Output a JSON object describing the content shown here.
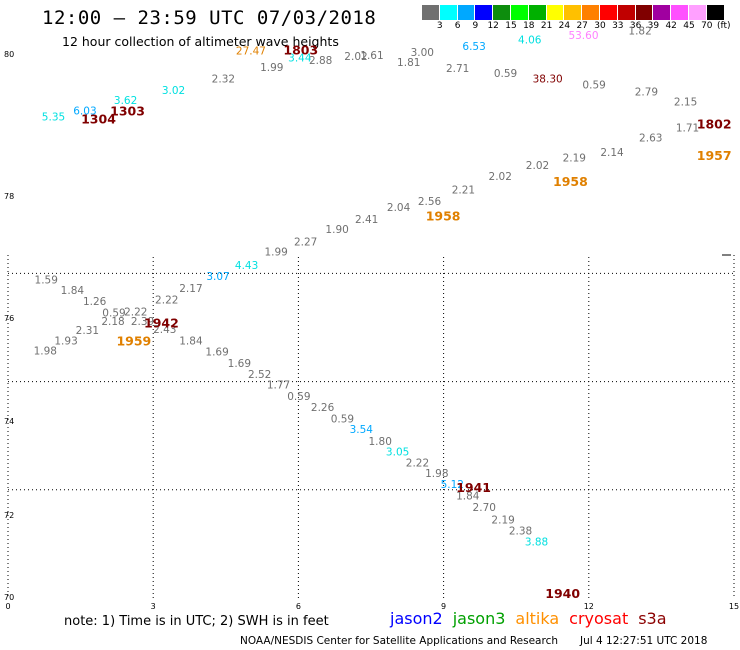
{
  "header": {
    "title": "12:00 – 23:59 UTC 07/03/2018",
    "subtitle": "12 hour collection of altimeter wave heights"
  },
  "scale": {
    "colors": [
      "#707070",
      "#00ffff",
      "#00a8ff",
      "#0000ff",
      "#0d8d0d",
      "#00ff00",
      "#00b000",
      "#ffff00",
      "#ffc000",
      "#ff8000",
      "#ff0000",
      "#c00000",
      "#800000",
      "#a000a0",
      "#ff50ff",
      "#ffa0ff",
      "#000000"
    ],
    "labels": [
      "3",
      "6",
      "9",
      "12",
      "15",
      "18",
      "21",
      "24",
      "27",
      "30",
      "33",
      "36",
      "39",
      "42",
      "45",
      "70"
    ],
    "unit": "(ft)"
  },
  "axes": {
    "x_ticks": [
      "0",
      "3",
      "6",
      "9",
      "12",
      "15"
    ],
    "y_ticks": [
      "80",
      "78",
      "76",
      "74",
      "72",
      "70"
    ]
  },
  "map_data": {
    "x_range": [
      0,
      15
    ],
    "y_range": [
      70,
      80
    ],
    "grid_x": [
      3,
      6,
      9,
      12
    ],
    "grid_y": [
      72,
      74,
      76,
      78
    ],
    "wave_labels": [
      {
        "x": 0.94,
        "y": 78.83,
        "text": "5.35",
        "color": "#00e0e0"
      },
      {
        "x": 1.59,
        "y": 78.94,
        "text": "6.03",
        "color": "#00a8ff"
      },
      {
        "x": 2.43,
        "y": 79.13,
        "text": "3.62",
        "color": "#00e0e0"
      },
      {
        "x": 3.42,
        "y": 79.32,
        "text": "3.02",
        "color": "#00e0e0"
      },
      {
        "x": 4.45,
        "y": 79.53,
        "text": "2.32",
        "color": "#707070"
      },
      {
        "x": 5.45,
        "y": 79.74,
        "text": "1.99",
        "color": "#707070"
      },
      {
        "x": 6.46,
        "y": 79.87,
        "text": "2.88",
        "color": "#707070"
      },
      {
        "x": 7.19,
        "y": 79.94,
        "text": "2.02",
        "color": "#707070"
      },
      {
        "x": 7.52,
        "y": 79.96,
        "text": "1.61",
        "color": "#707070"
      },
      {
        "x": 8.28,
        "y": 79.83,
        "text": "1.81",
        "color": "#707070"
      },
      {
        "x": 8.56,
        "y": 80.02,
        "text": "3.00",
        "color": "#707070"
      },
      {
        "x": 9.63,
        "y": 80.13,
        "text": "6.53",
        "color": "#00a8ff"
      },
      {
        "x": 9.29,
        "y": 79.72,
        "text": "2.71",
        "color": "#707070"
      },
      {
        "x": 10.28,
        "y": 79.63,
        "text": "0.59",
        "color": "#707070"
      },
      {
        "x": 10.78,
        "y": 80.25,
        "text": "4.06",
        "color": "#00e0e0"
      },
      {
        "x": 11.15,
        "y": 79.53,
        "text": "38.30",
        "color": "#800000"
      },
      {
        "x": 11.89,
        "y": 80.33,
        "text": "53.60",
        "color": "#ff80ff"
      },
      {
        "x": 12.11,
        "y": 79.42,
        "text": "0.59",
        "color": "#707070"
      },
      {
        "x": 13.06,
        "y": 80.42,
        "text": "1.82",
        "color": "#707070"
      },
      {
        "x": 13.19,
        "y": 79.29,
        "text": "2.79",
        "color": "#707070"
      },
      {
        "x": 14.0,
        "y": 79.1,
        "text": "2.15",
        "color": "#707070"
      },
      {
        "x": 14.04,
        "y": 78.62,
        "text": "1.71",
        "color": "#707070"
      },
      {
        "x": 13.28,
        "y": 78.44,
        "text": "2.63",
        "color": "#707070"
      },
      {
        "x": 12.48,
        "y": 78.17,
        "text": "2.14",
        "color": "#707070"
      },
      {
        "x": 11.7,
        "y": 78.07,
        "text": "2.19",
        "color": "#707070"
      },
      {
        "x": 10.94,
        "y": 77.93,
        "text": "2.02",
        "color": "#707070"
      },
      {
        "x": 10.17,
        "y": 77.73,
        "text": "2.02",
        "color": "#707070"
      },
      {
        "x": 9.41,
        "y": 77.48,
        "text": "2.21",
        "color": "#707070"
      },
      {
        "x": 8.71,
        "y": 77.26,
        "text": "2.56",
        "color": "#707070"
      },
      {
        "x": 8.07,
        "y": 77.15,
        "text": "2.04",
        "color": "#707070"
      },
      {
        "x": 7.41,
        "y": 76.93,
        "text": "2.41",
        "color": "#707070"
      },
      {
        "x": 6.8,
        "y": 76.75,
        "text": "1.90",
        "color": "#707070"
      },
      {
        "x": 6.15,
        "y": 76.52,
        "text": "2.27",
        "color": "#707070"
      },
      {
        "x": 5.54,
        "y": 76.33,
        "text": "1.99",
        "color": "#707070"
      },
      {
        "x": 4.93,
        "y": 76.08,
        "text": "4.43",
        "color": "#00e0e0"
      },
      {
        "x": 4.34,
        "y": 75.88,
        "text": "3.07",
        "color": "#00a8ff"
      },
      {
        "x": 3.78,
        "y": 75.66,
        "text": "2.17",
        "color": "#707070"
      },
      {
        "x": 3.28,
        "y": 75.44,
        "text": "2.22",
        "color": "#707070"
      },
      {
        "x": 0.79,
        "y": 75.81,
        "text": "1.59",
        "color": "#707070"
      },
      {
        "x": 1.33,
        "y": 75.62,
        "text": "1.84",
        "color": "#707070"
      },
      {
        "x": 1.79,
        "y": 75.42,
        "text": "1.26",
        "color": "#707070"
      },
      {
        "x": 2.19,
        "y": 75.2,
        "text": "0.59",
        "color": "#707070"
      },
      {
        "x": 2.64,
        "y": 75.22,
        "text": "2.22",
        "color": "#707070"
      },
      {
        "x": 2.17,
        "y": 75.05,
        "text": "2.18",
        "color": "#707070"
      },
      {
        "x": 2.78,
        "y": 75.05,
        "text": "2.39",
        "color": "#707070"
      },
      {
        "x": 1.64,
        "y": 74.88,
        "text": "2.31",
        "color": "#707070"
      },
      {
        "x": 3.24,
        "y": 74.9,
        "text": "2.43",
        "color": "#707070"
      },
      {
        "x": 1.2,
        "y": 74.69,
        "text": "1.93",
        "color": "#707070"
      },
      {
        "x": 0.77,
        "y": 74.5,
        "text": "1.98",
        "color": "#707070"
      },
      {
        "x": 3.78,
        "y": 74.69,
        "text": "1.84",
        "color": "#707070"
      },
      {
        "x": 4.32,
        "y": 74.48,
        "text": "1.69",
        "color": "#707070"
      },
      {
        "x": 4.78,
        "y": 74.27,
        "text": "1.69",
        "color": "#707070"
      },
      {
        "x": 5.2,
        "y": 74.07,
        "text": "2.52",
        "color": "#707070"
      },
      {
        "x": 5.59,
        "y": 73.87,
        "text": "1.77",
        "color": "#707070"
      },
      {
        "x": 6.01,
        "y": 73.66,
        "text": "0.59",
        "color": "#707070"
      },
      {
        "x": 6.5,
        "y": 73.46,
        "text": "2.26",
        "color": "#707070"
      },
      {
        "x": 6.91,
        "y": 73.24,
        "text": "0.59",
        "color": "#707070"
      },
      {
        "x": 7.3,
        "y": 73.05,
        "text": "3.54",
        "color": "#00a8ff"
      },
      {
        "x": 7.69,
        "y": 72.83,
        "text": "1.80",
        "color": "#707070"
      },
      {
        "x": 8.05,
        "y": 72.63,
        "text": "3.05",
        "color": "#00e0e0"
      },
      {
        "x": 8.46,
        "y": 72.43,
        "text": "2.22",
        "color": "#707070"
      },
      {
        "x": 8.86,
        "y": 72.24,
        "text": "1.98",
        "color": "#707070"
      },
      {
        "x": 9.18,
        "y": 72.03,
        "text": "5.12",
        "color": "#00a8ff"
      },
      {
        "x": 9.5,
        "y": 71.82,
        "text": "1.84",
        "color": "#707070"
      },
      {
        "x": 9.84,
        "y": 71.61,
        "text": "2.70",
        "color": "#707070"
      },
      {
        "x": 10.23,
        "y": 71.38,
        "text": "2.19",
        "color": "#707070"
      },
      {
        "x": 10.59,
        "y": 71.17,
        "text": "2.38",
        "color": "#707070"
      },
      {
        "x": 10.92,
        "y": 70.97,
        "text": "3.88",
        "color": "#00e0e0"
      }
    ],
    "pass_labels": [
      {
        "x": 1.87,
        "y": 78.77,
        "text": "1304",
        "color": "#800000"
      },
      {
        "x": 2.47,
        "y": 78.92,
        "text": "1303",
        "color": "#800000"
      },
      {
        "x": 6.05,
        "y": 80.05,
        "text": "1803",
        "color": "#800000"
      },
      {
        "x": 14.95,
        "y": 78.68,
        "text": "1802",
        "color": "#800000"
      },
      {
        "x": 14.95,
        "y": 78.1,
        "text": "1957",
        "color": "#e08000"
      },
      {
        "x": 11.62,
        "y": 77.62,
        "text": "1958",
        "color": "#e08000"
      },
      {
        "x": 8.99,
        "y": 76.98,
        "text": "1958",
        "color": "#e08000"
      },
      {
        "x": 3.17,
        "y": 75.0,
        "text": "1942",
        "color": "#800000"
      },
      {
        "x": 2.6,
        "y": 74.67,
        "text": "1959",
        "color": "#e08000"
      },
      {
        "x": 9.62,
        "y": 71.96,
        "text": "1941",
        "color": "#800000"
      },
      {
        "x": 11.46,
        "y": 70.0,
        "text": "1940",
        "color": "#800000"
      }
    ],
    "extra_labels": [
      {
        "x": 5.02,
        "y": 80.05,
        "text": "27.47",
        "color": "#e08000"
      },
      {
        "x": 6.03,
        "y": 79.92,
        "text": "3.44",
        "color": "#00e0e0"
      }
    ]
  },
  "footer": {
    "note": "note: 1) Time is in UTC; 2) SWH is in feet",
    "legend": [
      {
        "label": "jason2",
        "color": "#0000ff"
      },
      {
        "label": "jason3",
        "color": "#00a000"
      },
      {
        "label": "altika",
        "color": "#ff9000"
      },
      {
        "label": "cryosat",
        "color": "#ff0000"
      },
      {
        "label": "s3a",
        "color": "#8b0000"
      }
    ],
    "credit": "NOAA/NESDIS Center for Satellite Applications and Research",
    "timestamp": "Jul  4 12:27:51 UTC 2018"
  }
}
